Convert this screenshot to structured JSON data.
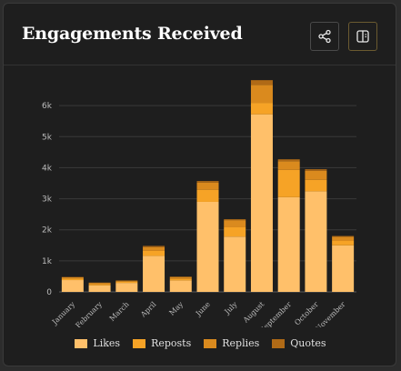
{
  "header": {
    "title": "Engagements Received"
  },
  "buttons": {
    "share_icon": "share-icon",
    "panel_icon": "split-panel-icon"
  },
  "chart_data": {
    "type": "bar",
    "stacked": true,
    "title": "Engagements Received",
    "categories": [
      "January",
      "February",
      "March",
      "April",
      "May",
      "June",
      "July",
      "August",
      "September",
      "October",
      "November"
    ],
    "series": [
      {
        "name": "Likes",
        "color": "#ffc06a",
        "values": [
          380,
          210,
          290,
          1160,
          370,
          2900,
          1780,
          5720,
          3050,
          3240,
          1500
        ]
      },
      {
        "name": "Reposts",
        "color": "#f6a326",
        "values": [
          50,
          40,
          40,
          160,
          50,
          390,
          300,
          370,
          880,
          370,
          140
        ]
      },
      {
        "name": "Replies",
        "color": "#da8a1e",
        "values": [
          40,
          40,
          30,
          120,
          60,
          230,
          230,
          580,
          280,
          290,
          130
        ]
      },
      {
        "name": "Quotes",
        "color": "#b06a16",
        "values": [
          10,
          10,
          10,
          40,
          10,
          50,
          30,
          150,
          60,
          50,
          30
        ]
      }
    ],
    "yticks": [
      "0",
      "1k",
      "2k",
      "3k",
      "4k",
      "5k",
      "6k"
    ],
    "ylim": [
      0,
      7000
    ],
    "grid": true,
    "legend_position": "bottom"
  }
}
